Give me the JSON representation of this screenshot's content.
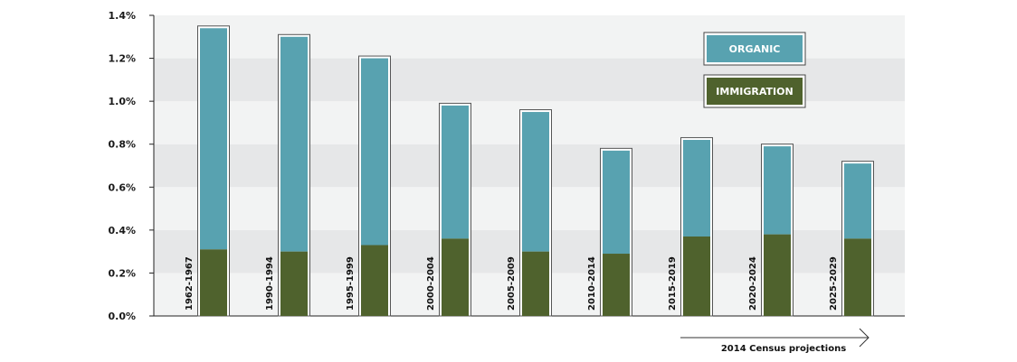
{
  "chart_data": {
    "type": "bar",
    "stacked": true,
    "categories": [
      "1962-1967",
      "1990-1994",
      "1995-1999",
      "2000-2004",
      "2005-2009",
      "2010-2014",
      "2015-2019",
      "2020-2024",
      "2025-2029"
    ],
    "series": [
      {
        "name": "IMMIGRATION",
        "color": "#4f622d",
        "values": [
          0.31,
          0.3,
          0.33,
          0.36,
          0.3,
          0.29,
          0.37,
          0.38,
          0.36
        ]
      },
      {
        "name": "ORGANIC",
        "color": "#58a2b0",
        "values": [
          1.03,
          1.0,
          0.87,
          0.62,
          0.65,
          0.48,
          0.45,
          0.41,
          0.35
        ]
      }
    ],
    "ylim": [
      0,
      1.4
    ],
    "yticks": [
      "0.0%",
      "0.2%",
      "0.4%",
      "0.6%",
      "0.8%",
      "1.0%",
      "1.2%",
      "1.4%"
    ],
    "ytick_values": [
      0,
      0.2,
      0.4,
      0.6,
      0.8,
      1.0,
      1.2,
      1.4
    ],
    "legend_position": "top-right",
    "annotation": "2014 Census projections",
    "colors": {
      "band_dark": "#e6e7e8",
      "band_light": "#f2f3f3"
    }
  }
}
